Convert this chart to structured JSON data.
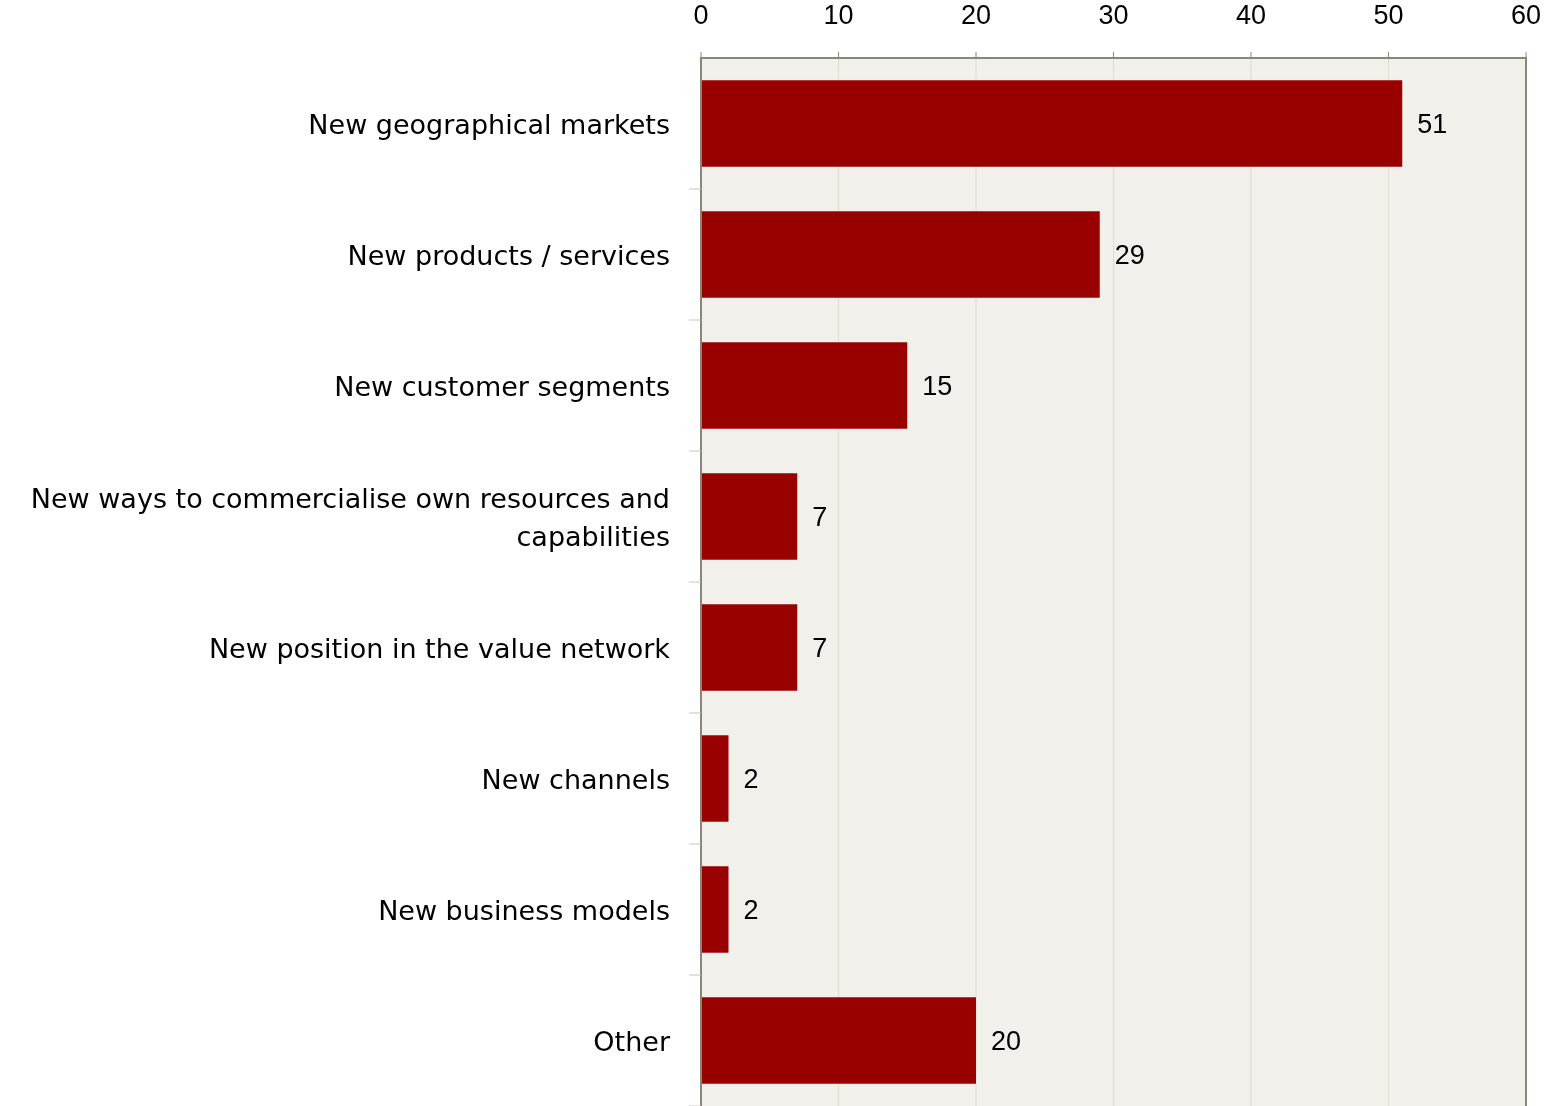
{
  "chart_data": {
    "type": "bar",
    "orientation": "horizontal",
    "categories": [
      "New geographical markets",
      "New products / services",
      "New customer segments",
      "New ways to commercialise own resources and capabilities",
      "New position in the value network",
      "New channels",
      "New business models",
      "Other"
    ],
    "values": [
      51,
      29,
      15,
      7,
      7,
      2,
      2,
      20
    ],
    "color": "#990000",
    "xlim": [
      0,
      60
    ],
    "xticks": [
      0,
      10,
      20,
      30,
      40,
      50,
      60
    ],
    "grid": "x",
    "data_labels": true
  }
}
